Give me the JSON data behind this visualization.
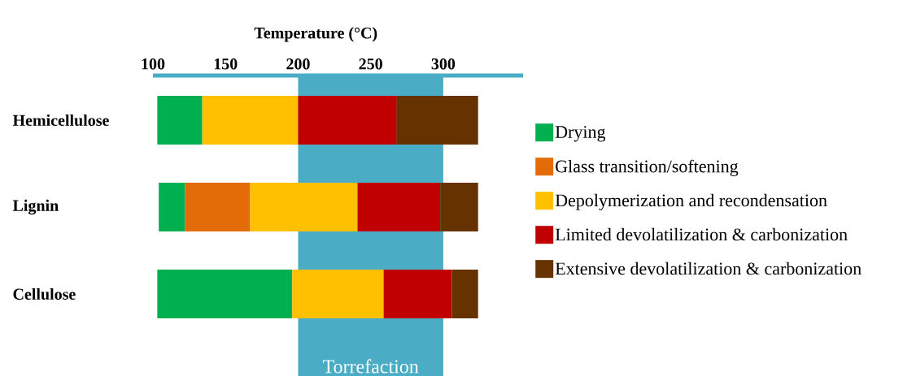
{
  "chart_data": {
    "type": "bar",
    "orientation": "horizontal",
    "xlabel": "Temperature (°C)",
    "categories": [
      "Hemicellulose",
      "Lignin",
      "Cellulose"
    ],
    "series": [
      {
        "name": "Drying",
        "color": "#00b050",
        "base": [
          103,
          104,
          103
        ],
        "values": [
          31,
          18,
          93
        ]
      },
      {
        "name": "Glass transition/softening",
        "color": "#e36c09",
        "base": [
          null,
          122,
          null
        ],
        "values": [
          null,
          45,
          null
        ]
      },
      {
        "name": "Depolymerization and recondensation",
        "color": "#ffc000",
        "base": [
          134,
          167,
          196
        ],
        "values": [
          66,
          74,
          63
        ]
      },
      {
        "name": "Limited devolatilization & carbonization",
        "color": "#c00000",
        "base": [
          200,
          241,
          259
        ],
        "values": [
          68,
          57,
          47
        ]
      },
      {
        "name": "Extensive devolatilization & carbonization",
        "color": "#663300",
        "base": [
          268,
          298,
          306
        ],
        "values": [
          56,
          26,
          18
        ]
      }
    ],
    "xlim": [
      100,
      355
    ],
    "xticks": [
      100,
      150,
      200,
      250,
      300
    ],
    "bands": [
      {
        "axis": "x",
        "from": 200,
        "to": 300,
        "label": "Torrefaction",
        "color": "#4bacc6"
      }
    ],
    "legend": "right"
  }
}
